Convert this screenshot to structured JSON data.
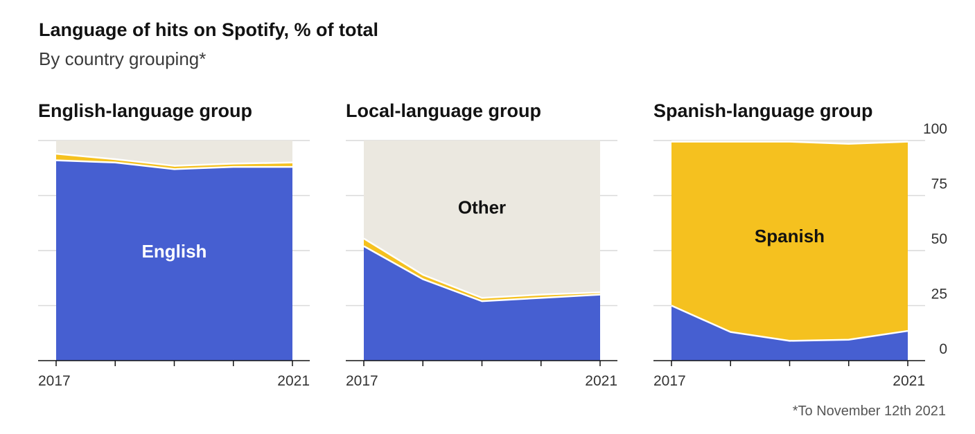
{
  "header": {
    "title": "Language of hits on Spotify, % of total",
    "subtitle": "By country grouping*"
  },
  "footnote": "*To November 12th 2021",
  "colors": {
    "english": "#465fd1",
    "spanish": "#f5c11f",
    "other": "#ebe8e0",
    "grid": "#d9d9d9",
    "axis": "#121212",
    "english_label": "#ffffff",
    "other_label": "#121212",
    "spanish_label": "#121212"
  },
  "chart_data": [
    {
      "type": "area",
      "title": "English-language group",
      "x": [
        2017,
        2018,
        2019,
        2020,
        2021
      ],
      "x_tick_labels": [
        "2017",
        "",
        "",
        "",
        "2021"
      ],
      "series": [
        {
          "key": "english",
          "values": [
            91,
            90,
            87,
            88,
            88
          ],
          "label": "English",
          "label_at": [
            2018.0,
            49
          ]
        },
        {
          "key": "spanish",
          "values": [
            3,
            1.5,
            1.5,
            1.5,
            2
          ]
        },
        {
          "key": "other",
          "values": [
            6,
            8.5,
            11.5,
            10.5,
            10
          ],
          "label": "",
          "label_at": null
        }
      ],
      "ylim": [
        0,
        100
      ],
      "y_ticks": [
        0,
        25,
        50,
        75,
        100
      ],
      "y_tick_labels_shown": false,
      "grid": true
    },
    {
      "type": "area",
      "title": "Local-language group",
      "x": [
        2017,
        2018,
        2019,
        2020,
        2021
      ],
      "x_tick_labels": [
        "2017",
        "",
        "",
        "",
        "2021"
      ],
      "series": [
        {
          "key": "english",
          "values": [
            52,
            37,
            27,
            28.5,
            30
          ],
          "label": "",
          "label_at": null
        },
        {
          "key": "spanish",
          "values": [
            3.5,
            2,
            1.5,
            1.5,
            1
          ]
        },
        {
          "key": "other",
          "values": [
            44.5,
            61,
            71.5,
            70,
            69
          ],
          "label": "Other",
          "label_at": [
            2018.0,
            69
          ]
        }
      ],
      "ylim": [
        0,
        100
      ],
      "y_ticks": [
        0,
        25,
        50,
        75,
        100
      ],
      "y_tick_labels_shown": false,
      "grid": true
    },
    {
      "type": "area",
      "title": "Spanish-language group",
      "x": [
        2017,
        2018,
        2019,
        2020,
        2021
      ],
      "x_tick_labels": [
        "2017",
        "",
        "",
        "",
        "2021"
      ],
      "series": [
        {
          "key": "english",
          "values": [
            25,
            13,
            9,
            9.5,
            13.5
          ]
        },
        {
          "key": "spanish",
          "values": [
            74.5,
            86.5,
            90.5,
            89,
            86
          ],
          "label": "Spanish",
          "label_at": [
            2018.0,
            56
          ]
        },
        {
          "key": "other",
          "values": [
            0.5,
            0.5,
            0.5,
            1.5,
            0.5
          ]
        }
      ],
      "ylim": [
        0,
        100
      ],
      "y_ticks": [
        0,
        25,
        50,
        75,
        100
      ],
      "y_tick_labels": [
        "0",
        "25",
        "50",
        "75",
        "100"
      ],
      "y_tick_labels_shown": true,
      "grid": true
    }
  ]
}
